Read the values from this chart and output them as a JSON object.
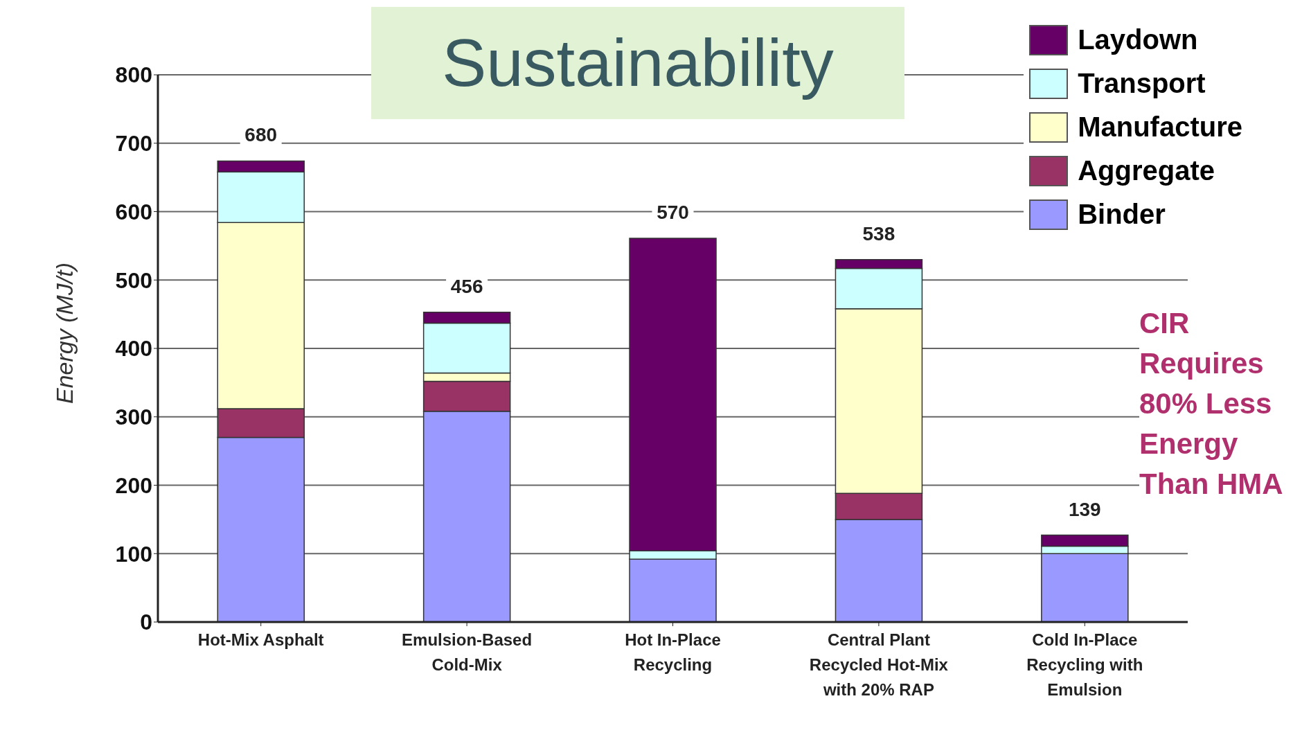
{
  "chart_data": {
    "type": "bar",
    "title": "Sustainability",
    "ylabel": "Energy (MJ/t)",
    "categories": [
      "Hot-Mix Asphalt",
      "Emulsion-Based Cold-Mix",
      "Hot In-Place Recycling",
      "Central Plant Recycled Hot-Mix with 20% RAP",
      "Cold In-Place Recycling with Emulsion"
    ],
    "stacked": true,
    "series": [
      {
        "name": "Binder",
        "color": "#9999ff",
        "values": [
          270,
          308,
          92,
          150,
          100
        ]
      },
      {
        "name": "Aggregate",
        "color": "#993366",
        "values": [
          42,
          44,
          0,
          38,
          0
        ]
      },
      {
        "name": "Manufacture",
        "color": "#ffffcc",
        "values": [
          272,
          12,
          0,
          270,
          0
        ]
      },
      {
        "name": "Transport",
        "color": "#ccffff",
        "values": [
          74,
          73,
          12,
          59,
          11
        ]
      },
      {
        "name": "Laydown",
        "color": "#660066",
        "values": [
          16,
          16,
          457,
          13,
          16
        ]
      }
    ],
    "ylim": [
      0,
      800
    ],
    "yticks": [
      0,
      100,
      200,
      300,
      400,
      500,
      600,
      700,
      800
    ],
    "grid": "y",
    "legend": "top right",
    "annotations": [
      "680",
      "456",
      "570",
      "538",
      "139",
      "CIR Requires 80% Less Energy Than HMA"
    ]
  }
}
